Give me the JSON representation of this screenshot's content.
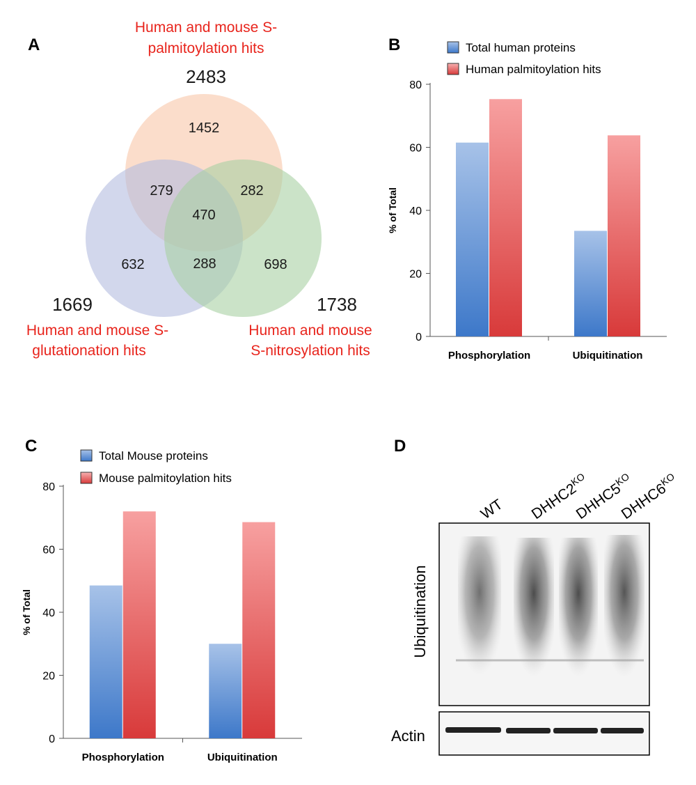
{
  "panels": {
    "a": "A",
    "b": "B",
    "c": "C",
    "d": "D"
  },
  "venn": {
    "sets": [
      {
        "label_line1": "Human and mouse S-",
        "label_line2": "palmitoylation hits",
        "total": "2483",
        "color": "#f9c7a8"
      },
      {
        "label_line1": "Human and mouse S-",
        "label_line2": "glutationation hits",
        "total": "1669",
        "color": "#b4bde0"
      },
      {
        "label_line1": "Human and mouse",
        "label_line2": "S-nitrosylation hits",
        "total": "1738",
        "color": "#a9d1a3"
      }
    ],
    "regions": {
      "palm_only": "1452",
      "glut_only": "632",
      "nitro_only": "698",
      "palm_glut": "279",
      "palm_nitro": "282",
      "glut_nitro": "288",
      "all_three": "470"
    },
    "label_color": "#e8241c"
  },
  "chart_data": [
    {
      "type": "bar",
      "categories": [
        "Phosphorylation",
        "Ubiquitination"
      ],
      "series": [
        {
          "name": "Total human proteins",
          "values": [
            61.5,
            33.5
          ],
          "color": "#5b8fd6"
        },
        {
          "name": "Human palmitoylation hits",
          "values": [
            75.3,
            63.8
          ],
          "color": "#e65858"
        }
      ],
      "ylabel": "% of Total",
      "ylim": [
        0,
        80
      ],
      "yticks": [
        "0",
        "20",
        "40",
        "60",
        "80"
      ],
      "legend": "top"
    },
    {
      "type": "bar",
      "categories": [
        "Phosphorylation",
        "Ubiquitination"
      ],
      "series": [
        {
          "name": "Total Mouse proteins",
          "values": [
            48.5,
            30.0
          ],
          "color": "#5b8fd6"
        },
        {
          "name": "Mouse palmitoylation hits",
          "values": [
            72.0,
            68.6
          ],
          "color": "#e65858"
        }
      ],
      "ylabel": "% of Total",
      "ylim": [
        0,
        80
      ],
      "yticks": [
        "0",
        "20",
        "40",
        "60",
        "80"
      ],
      "legend": "top"
    }
  ],
  "blot": {
    "lanes": [
      {
        "label": "WT",
        "sup": ""
      },
      {
        "label": "DHHC2",
        "sup": "KO"
      },
      {
        "label": "DHHC5",
        "sup": "KO"
      },
      {
        "label": "DHHC6",
        "sup": "KO"
      }
    ],
    "row_labels": {
      "main": "Ubiquitination",
      "loading": "Actin"
    }
  }
}
